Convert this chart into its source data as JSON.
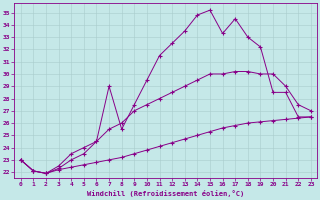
{
  "xlabel": "Windchill (Refroidissement éolien,°C)",
  "bg_color": "#c5e8e8",
  "line_color": "#880088",
  "grid_color": "#aacccc",
  "xlim": [
    -0.5,
    23.5
  ],
  "ylim": [
    21.5,
    35.8
  ],
  "xticks": [
    0,
    1,
    2,
    3,
    4,
    5,
    6,
    7,
    8,
    9,
    10,
    11,
    12,
    13,
    14,
    15,
    16,
    17,
    18,
    19,
    20,
    21,
    22,
    23
  ],
  "yticks": [
    22,
    23,
    24,
    25,
    26,
    27,
    28,
    29,
    30,
    31,
    32,
    33,
    34,
    35
  ],
  "curves": [
    {
      "x": [
        0,
        1,
        2,
        3,
        4,
        5,
        6,
        7,
        8,
        9,
        10,
        11,
        12,
        13,
        14,
        15,
        16,
        17,
        18,
        19,
        20,
        21,
        22,
        23
      ],
      "y": [
        23.0,
        22.1,
        21.9,
        22.2,
        22.4,
        22.6,
        22.8,
        23.0,
        23.2,
        23.5,
        23.8,
        24.1,
        24.4,
        24.7,
        25.0,
        25.3,
        25.6,
        25.8,
        26.0,
        26.1,
        26.2,
        26.3,
        26.4,
        26.5
      ]
    },
    {
      "x": [
        0,
        1,
        2,
        3,
        4,
        5,
        6,
        7,
        8,
        9,
        10,
        11,
        12,
        13,
        14,
        15,
        16,
        17,
        18,
        19,
        20,
        21,
        22,
        23
      ],
      "y": [
        23.0,
        22.1,
        21.9,
        22.3,
        23.0,
        23.5,
        24.5,
        25.5,
        26.0,
        27.0,
        27.5,
        28.0,
        28.5,
        29.0,
        29.5,
        30.0,
        30.0,
        30.2,
        30.2,
        30.0,
        30.0,
        29.0,
        27.5,
        27.0
      ]
    },
    {
      "x": [
        0,
        1,
        2,
        3,
        4,
        5,
        6,
        7,
        8,
        9,
        10,
        11,
        12,
        13,
        14,
        15,
        16,
        17,
        18,
        19,
        20,
        21,
        22,
        23
      ],
      "y": [
        23.0,
        22.1,
        21.9,
        22.5,
        23.5,
        24.0,
        24.5,
        29.0,
        25.5,
        27.5,
        29.5,
        31.5,
        32.5,
        33.5,
        34.8,
        35.2,
        33.3,
        34.5,
        33.0,
        32.2,
        28.5,
        28.5,
        26.5,
        26.5
      ]
    }
  ]
}
